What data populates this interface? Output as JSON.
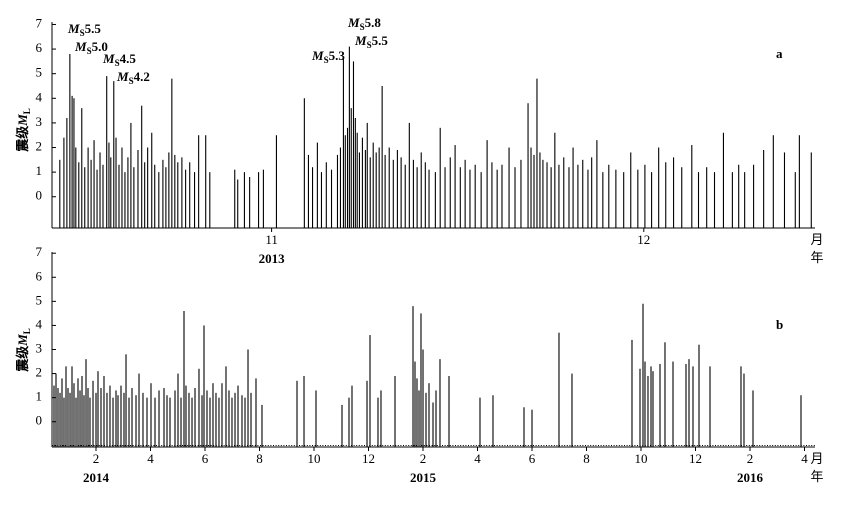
{
  "chart_data": [
    {
      "type": "stem",
      "panel": "a",
      "ylabel": "震级",
      "ylabel_symbol": "M",
      "ylabel_sub": "L",
      "x_unit": "月",
      "year_unit": "年",
      "xlim": [
        10.41,
        12.46
      ],
      "xticks": [
        11,
        12
      ],
      "ylim": [
        -1.27,
        7.1
      ],
      "yticks": [
        0,
        1,
        2,
        3,
        4,
        5,
        6,
        7
      ],
      "year_labels": [
        {
          "text": "2013",
          "x": 11
        }
      ],
      "annotations": [
        {
          "symbol": "M",
          "sub": "S",
          "text": "5.5"
        },
        {
          "symbol": "M",
          "sub": "S",
          "text": "5.0"
        },
        {
          "symbol": "M",
          "sub": "S",
          "text": "4.5"
        },
        {
          "symbol": "M",
          "sub": "S",
          "text": "4.2"
        },
        {
          "symbol": "M",
          "sub": "S",
          "text": "5.3"
        },
        {
          "symbol": "M",
          "sub": "S",
          "text": "5.8"
        },
        {
          "symbol": "M",
          "sub": "S",
          "text": "5.5"
        }
      ],
      "color": "#000000",
      "x": [
        10.431,
        10.442,
        10.45,
        10.458,
        10.464,
        10.469,
        10.474,
        10.482,
        10.49,
        10.498,
        10.507,
        10.515,
        10.523,
        10.531,
        10.539,
        10.547,
        10.557,
        10.563,
        10.568,
        10.576,
        10.582,
        10.59,
        10.598,
        10.606,
        10.614,
        10.622,
        10.63,
        10.641,
        10.651,
        10.659,
        10.667,
        10.678,
        10.686,
        10.697,
        10.708,
        10.716,
        10.724,
        10.732,
        10.74,
        10.748,
        10.759,
        10.769,
        10.78,
        10.793,
        10.804,
        10.823,
        10.834,
        10.901,
        10.909,
        10.927,
        10.941,
        10.965,
        10.978,
        11.013,
        11.088,
        11.099,
        11.11,
        11.123,
        11.134,
        11.147,
        11.161,
        11.177,
        11.185,
        11.193,
        11.198,
        11.204,
        11.209,
        11.214,
        11.22,
        11.225,
        11.23,
        11.236,
        11.244,
        11.252,
        11.257,
        11.265,
        11.273,
        11.281,
        11.289,
        11.297,
        11.305,
        11.316,
        11.327,
        11.338,
        11.348,
        11.359,
        11.37,
        11.381,
        11.391,
        11.402,
        11.413,
        11.423,
        11.44,
        11.453,
        11.466,
        11.48,
        11.493,
        11.507,
        11.52,
        11.533,
        11.547,
        11.563,
        11.579,
        11.592,
        11.606,
        11.619,
        11.638,
        11.654,
        11.67,
        11.689,
        11.697,
        11.705,
        11.713,
        11.721,
        11.729,
        11.74,
        11.751,
        11.761,
        11.772,
        11.785,
        11.799,
        11.81,
        11.823,
        11.836,
        11.85,
        11.86,
        11.874,
        11.89,
        11.906,
        11.925,
        11.946,
        11.965,
        11.984,
        12.003,
        12.021,
        12.04,
        12.059,
        12.08,
        12.102,
        12.129,
        12.147,
        12.169,
        12.19,
        12.214,
        12.238,
        12.255,
        12.271,
        12.295,
        12.322,
        12.348,
        12.378,
        12.407,
        12.418,
        12.45
      ],
      "values": [
        1.5,
        2.4,
        3.2,
        5.8,
        4.1,
        4.0,
        2.0,
        1.4,
        3.6,
        1.2,
        2.0,
        1.5,
        2.3,
        1.1,
        1.8,
        1.3,
        4.9,
        2.2,
        1.6,
        4.7,
        2.4,
        1.3,
        2.0,
        1.0,
        1.6,
        3.0,
        1.2,
        1.9,
        3.7,
        1.4,
        2.0,
        2.6,
        1.3,
        1.0,
        1.5,
        1.2,
        1.8,
        4.8,
        1.7,
        1.4,
        1.6,
        1.1,
        1.4,
        1.0,
        2.5,
        2.5,
        1.0,
        1.1,
        0.7,
        1.0,
        0.8,
        1.0,
        1.1,
        2.5,
        4.0,
        1.7,
        1.2,
        2.2,
        1.0,
        1.4,
        1.1,
        1.7,
        2.0,
        5.6,
        2.5,
        2.8,
        6.1,
        3.6,
        5.5,
        3.2,
        2.6,
        1.8,
        2.4,
        1.9,
        3.0,
        1.6,
        2.2,
        1.8,
        2.0,
        4.5,
        1.7,
        2.0,
        1.5,
        1.9,
        1.6,
        1.3,
        3.0,
        1.5,
        1.2,
        1.8,
        1.4,
        1.1,
        1.0,
        2.8,
        1.2,
        1.6,
        2.1,
        1.2,
        1.5,
        1.1,
        1.3,
        1.0,
        2.3,
        1.4,
        1.1,
        1.3,
        2.0,
        1.2,
        1.5,
        3.8,
        2.0,
        1.7,
        4.8,
        1.8,
        1.5,
        1.4,
        1.2,
        2.6,
        1.3,
        1.6,
        1.2,
        2.0,
        1.3,
        1.5,
        1.1,
        1.6,
        2.3,
        1.0,
        1.3,
        1.1,
        1.0,
        1.8,
        1.1,
        1.3,
        1.0,
        2.0,
        1.4,
        1.6,
        1.2,
        2.1,
        1.0,
        1.2,
        1.0,
        2.6,
        1.0,
        1.3,
        1.0,
        1.3,
        1.9,
        2.5,
        1.8,
        1.0,
        2.5,
        1.8
      ]
    },
    {
      "type": "stem",
      "panel": "b",
      "ylabel": "震级",
      "ylabel_symbol": "M",
      "ylabel_sub": "L",
      "x_unit": "月",
      "year_unit": "年",
      "xlim": [
        0.385,
        28.385
      ],
      "xticks": [
        2,
        4,
        6,
        8,
        10,
        12,
        {
          "value": 14,
          "label": "2"
        },
        {
          "value": 16,
          "label": "4"
        },
        {
          "value": 18,
          "label": "6"
        },
        {
          "value": 20,
          "label": "8"
        },
        {
          "value": 22,
          "label": "10"
        },
        {
          "value": 24,
          "label": "12"
        },
        {
          "value": 26,
          "label": "2"
        },
        {
          "value": 28,
          "label": "4"
        }
      ],
      "ylim": [
        -1.05,
        7.05
      ],
      "yticks": [
        0,
        1,
        2,
        3,
        4,
        5,
        6,
        7
      ],
      "year_labels": [
        {
          "text": "2014",
          "x": 2
        },
        {
          "text": "2015",
          "x": 14
        },
        {
          "text": "2016",
          "x": 26
        }
      ],
      "color": "#000000",
      "x": [
        0.458,
        0.532,
        0.605,
        0.679,
        0.752,
        0.825,
        0.899,
        0.972,
        1.046,
        1.119,
        1.192,
        1.266,
        1.339,
        1.413,
        1.486,
        1.559,
        1.633,
        1.706,
        1.779,
        1.89,
        2.0,
        2.073,
        2.183,
        2.293,
        2.403,
        2.513,
        2.624,
        2.734,
        2.807,
        2.917,
        3.027,
        3.101,
        3.211,
        3.321,
        3.468,
        3.578,
        3.724,
        3.871,
        4.018,
        4.165,
        4.312,
        4.495,
        4.605,
        4.715,
        4.899,
        5.009,
        5.119,
        5.229,
        5.302,
        5.412,
        5.523,
        5.633,
        5.779,
        5.89,
        5.963,
        6.073,
        6.183,
        6.293,
        6.403,
        6.513,
        6.623,
        6.77,
        6.88,
        6.99,
        7.101,
        7.211,
        7.357,
        7.468,
        7.578,
        7.688,
        7.871,
        8.091,
        9.376,
        9.633,
        10.073,
        11.027,
        11.284,
        11.394,
        11.945,
        12.055,
        12.348,
        12.458,
        12.972,
        13.633,
        13.706,
        13.779,
        13.853,
        13.926,
        14.0,
        14.11,
        14.22,
        14.367,
        14.477,
        14.623,
        14.954,
        16.091,
        16.568,
        17.706,
        18.0,
        18.99,
        19.467,
        21.669,
        21.963,
        22.073,
        22.146,
        22.256,
        22.367,
        22.44,
        22.697,
        22.88,
        23.174,
        23.651,
        23.761,
        23.908,
        24.128,
        24.532,
        25.669,
        25.779,
        26.11,
        27.871
      ],
      "values": [
        1.5,
        2.0,
        1.4,
        1.2,
        1.8,
        1.0,
        2.3,
        1.4,
        1.2,
        2.3,
        1.6,
        1.0,
        1.8,
        1.3,
        1.9,
        1.1,
        2.6,
        1.4,
        1.0,
        1.7,
        1.2,
        2.1,
        1.4,
        1.9,
        1.2,
        1.5,
        1.0,
        1.3,
        1.1,
        1.5,
        1.2,
        2.8,
        1.0,
        1.4,
        1.1,
        2.0,
        1.2,
        1.0,
        1.6,
        1.0,
        1.3,
        1.4,
        1.1,
        1.0,
        1.3,
        2.0,
        1.0,
        4.6,
        1.5,
        1.2,
        1.0,
        1.4,
        2.2,
        1.1,
        4.0,
        1.3,
        1.0,
        1.6,
        1.2,
        1.0,
        1.6,
        2.3,
        1.3,
        1.0,
        1.2,
        1.5,
        1.1,
        1.0,
        3.0,
        1.2,
        1.8,
        0.7,
        1.7,
        1.9,
        1.3,
        0.7,
        1.0,
        1.5,
        1.7,
        3.6,
        1.0,
        1.3,
        1.9,
        4.8,
        2.5,
        1.8,
        1.3,
        4.5,
        3.0,
        1.2,
        1.6,
        0.8,
        1.3,
        2.6,
        1.9,
        1.0,
        1.1,
        0.6,
        0.5,
        3.7,
        2.0,
        3.4,
        2.2,
        4.9,
        2.5,
        1.9,
        2.3,
        2.1,
        2.4,
        3.3,
        2.5,
        2.4,
        2.6,
        2.3,
        3.2,
        2.3,
        2.3,
        2.0,
        1.3,
        1.1
      ]
    }
  ]
}
